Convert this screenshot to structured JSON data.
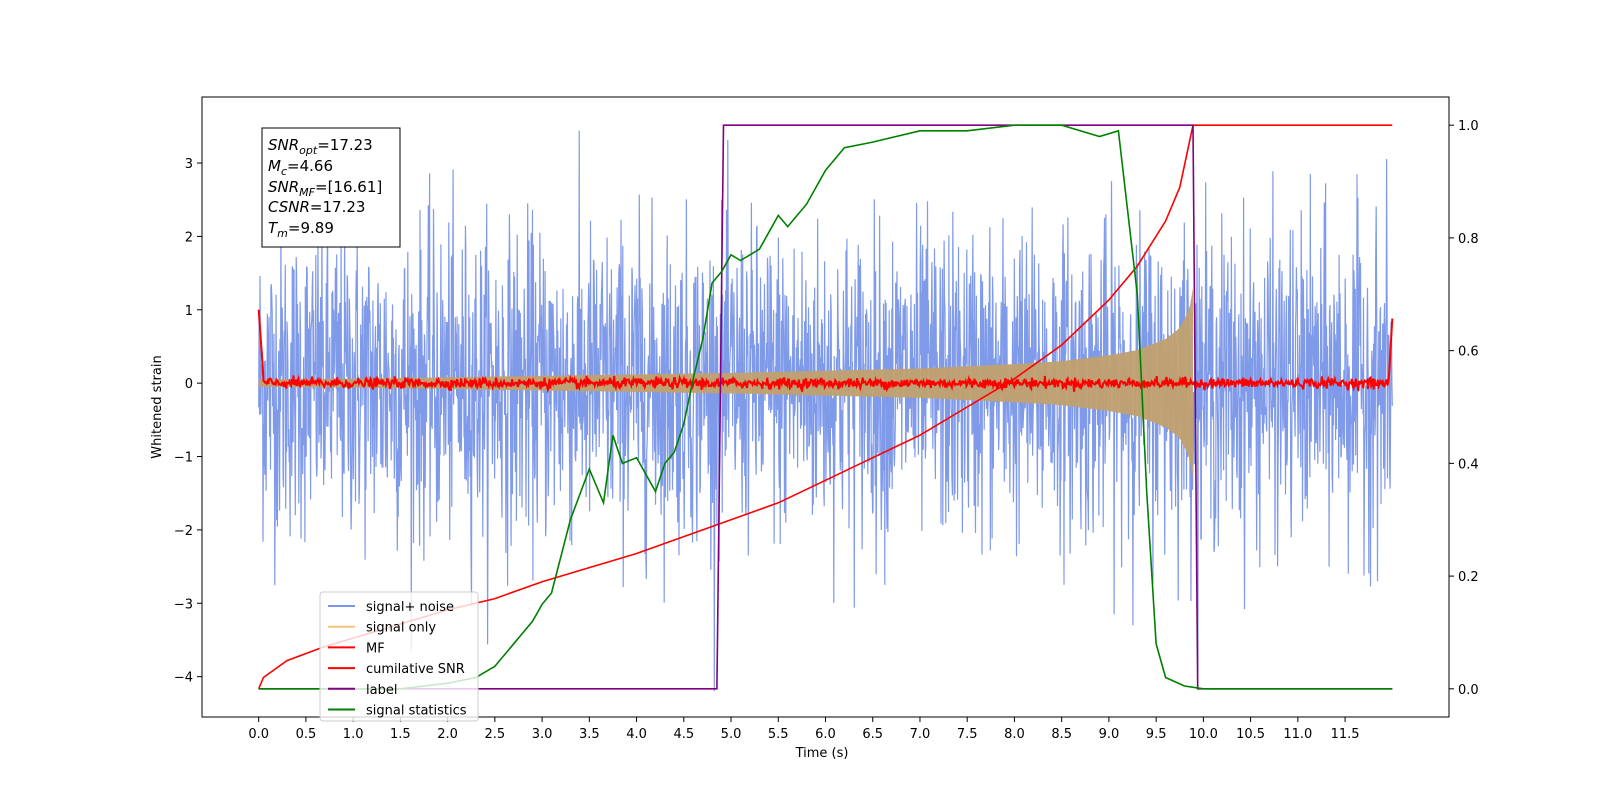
{
  "chart_data": {
    "type": "line",
    "xlabel": "Time (s)",
    "ylabel": "Whitened strain",
    "xlim": [
      -0.6,
      12.6
    ],
    "ylim": [
      -4.55,
      3.9
    ],
    "ylim_right": [
      -0.05,
      1.05
    ],
    "x_ticks": [
      "0.0",
      "0.5",
      "1.0",
      "1.5",
      "2.0",
      "2.5",
      "3.0",
      "3.5",
      "4.0",
      "4.5",
      "5.0",
      "5.5",
      "6.0",
      "6.5",
      "7.0",
      "7.5",
      "8.0",
      "8.5",
      "9.0",
      "9.5",
      "10.0",
      "10.5",
      "11.0",
      "11.5"
    ],
    "y_ticks": [
      "3",
      "2",
      "1",
      "0",
      "−1",
      "−2",
      "−3",
      "−4"
    ],
    "y_ticks_right": [
      "0.0",
      "0.2",
      "0.4",
      "0.6",
      "0.8",
      "1.0"
    ],
    "grid": false,
    "legend_position": "lower-left",
    "stats_box": {
      "snr_opt": {
        "sym": "SNR",
        "sub": "opt",
        "value": "=17.23"
      },
      "mc": {
        "sym": "M",
        "sub": "c",
        "value": "=4.66"
      },
      "snr_mf": {
        "sym": "SNR",
        "sub": "MF",
        "value": "=[16.61]"
      },
      "csnr": {
        "sym": "CSNR",
        "value": "=17.23"
      },
      "tm": {
        "sym": "T",
        "sub": "m",
        "value": "=9.89"
      }
    },
    "series": [
      {
        "name": "signal+ noise",
        "color": "#7995e9",
        "axis": "left",
        "description_points": {
          "x_start": 0.0,
          "x_end": 12.0,
          "envelope_max": 3.5,
          "envelope_min": -4.2
        }
      },
      {
        "name": "signal only",
        "color": "#f7c27a",
        "axis": "left",
        "x": [
          0.0,
          1.0,
          2.0,
          3.0,
          4.0,
          5.0,
          6.0,
          7.0,
          8.0,
          8.5,
          9.0,
          9.3,
          9.6,
          9.75,
          9.85,
          9.89
        ],
        "amplitude": [
          0.05,
          0.06,
          0.08,
          0.1,
          0.12,
          0.14,
          0.17,
          0.2,
          0.26,
          0.3,
          0.38,
          0.45,
          0.6,
          0.75,
          1.0,
          1.3
        ]
      },
      {
        "name": "MF",
        "color": "#ff0000",
        "axis": "left",
        "description_points": {
          "level": 0.0,
          "amplitude": 0.13
        }
      },
      {
        "name": "cumilative SNR",
        "color": "#ff0000",
        "axis": "right",
        "x": [
          0.0,
          0.05,
          0.3,
          0.7,
          1.0,
          1.5,
          2.0,
          2.5,
          3.0,
          3.5,
          4.0,
          4.5,
          5.0,
          5.5,
          6.0,
          6.5,
          7.0,
          7.5,
          8.0,
          8.5,
          9.0,
          9.3,
          9.6,
          9.75,
          9.89,
          12.0
        ],
        "values": [
          0.0,
          0.02,
          0.05,
          0.075,
          0.09,
          0.115,
          0.14,
          0.16,
          0.19,
          0.215,
          0.24,
          0.27,
          0.3,
          0.33,
          0.37,
          0.41,
          0.45,
          0.5,
          0.55,
          0.61,
          0.69,
          0.75,
          0.83,
          0.89,
          1.0,
          1.0
        ]
      },
      {
        "name": "label",
        "color": "#800080",
        "axis": "right",
        "x": [
          0.0,
          4.85,
          4.92,
          9.89,
          9.94,
          12.0
        ],
        "values": [
          0.0,
          0.0,
          1.0,
          1.0,
          0.0,
          0.0
        ]
      },
      {
        "name": "signal statistics",
        "color": "#008000",
        "axis": "right",
        "x": [
          0.0,
          0.5,
          1.0,
          1.5,
          2.0,
          2.3,
          2.5,
          2.7,
          2.9,
          3.0,
          3.1,
          3.3,
          3.5,
          3.65,
          3.75,
          3.85,
          4.0,
          4.2,
          4.3,
          4.4,
          4.5,
          4.6,
          4.7,
          4.8,
          4.9,
          5.0,
          5.1,
          5.3,
          5.5,
          5.6,
          5.8,
          6.0,
          6.2,
          6.5,
          7.0,
          7.5,
          8.0,
          8.5,
          8.9,
          9.1,
          9.3,
          9.4,
          9.5,
          9.6,
          9.8,
          10.0,
          12.0
        ],
        "values": [
          0.0,
          0.0,
          0.0,
          0.0,
          0.01,
          0.02,
          0.04,
          0.08,
          0.12,
          0.15,
          0.17,
          0.3,
          0.39,
          0.33,
          0.45,
          0.4,
          0.41,
          0.35,
          0.4,
          0.42,
          0.47,
          0.55,
          0.62,
          0.72,
          0.74,
          0.77,
          0.76,
          0.78,
          0.84,
          0.82,
          0.86,
          0.92,
          0.96,
          0.97,
          0.99,
          0.99,
          1.0,
          1.0,
          0.98,
          0.99,
          0.7,
          0.35,
          0.08,
          0.02,
          0.005,
          0.0,
          0.0
        ]
      }
    ]
  }
}
